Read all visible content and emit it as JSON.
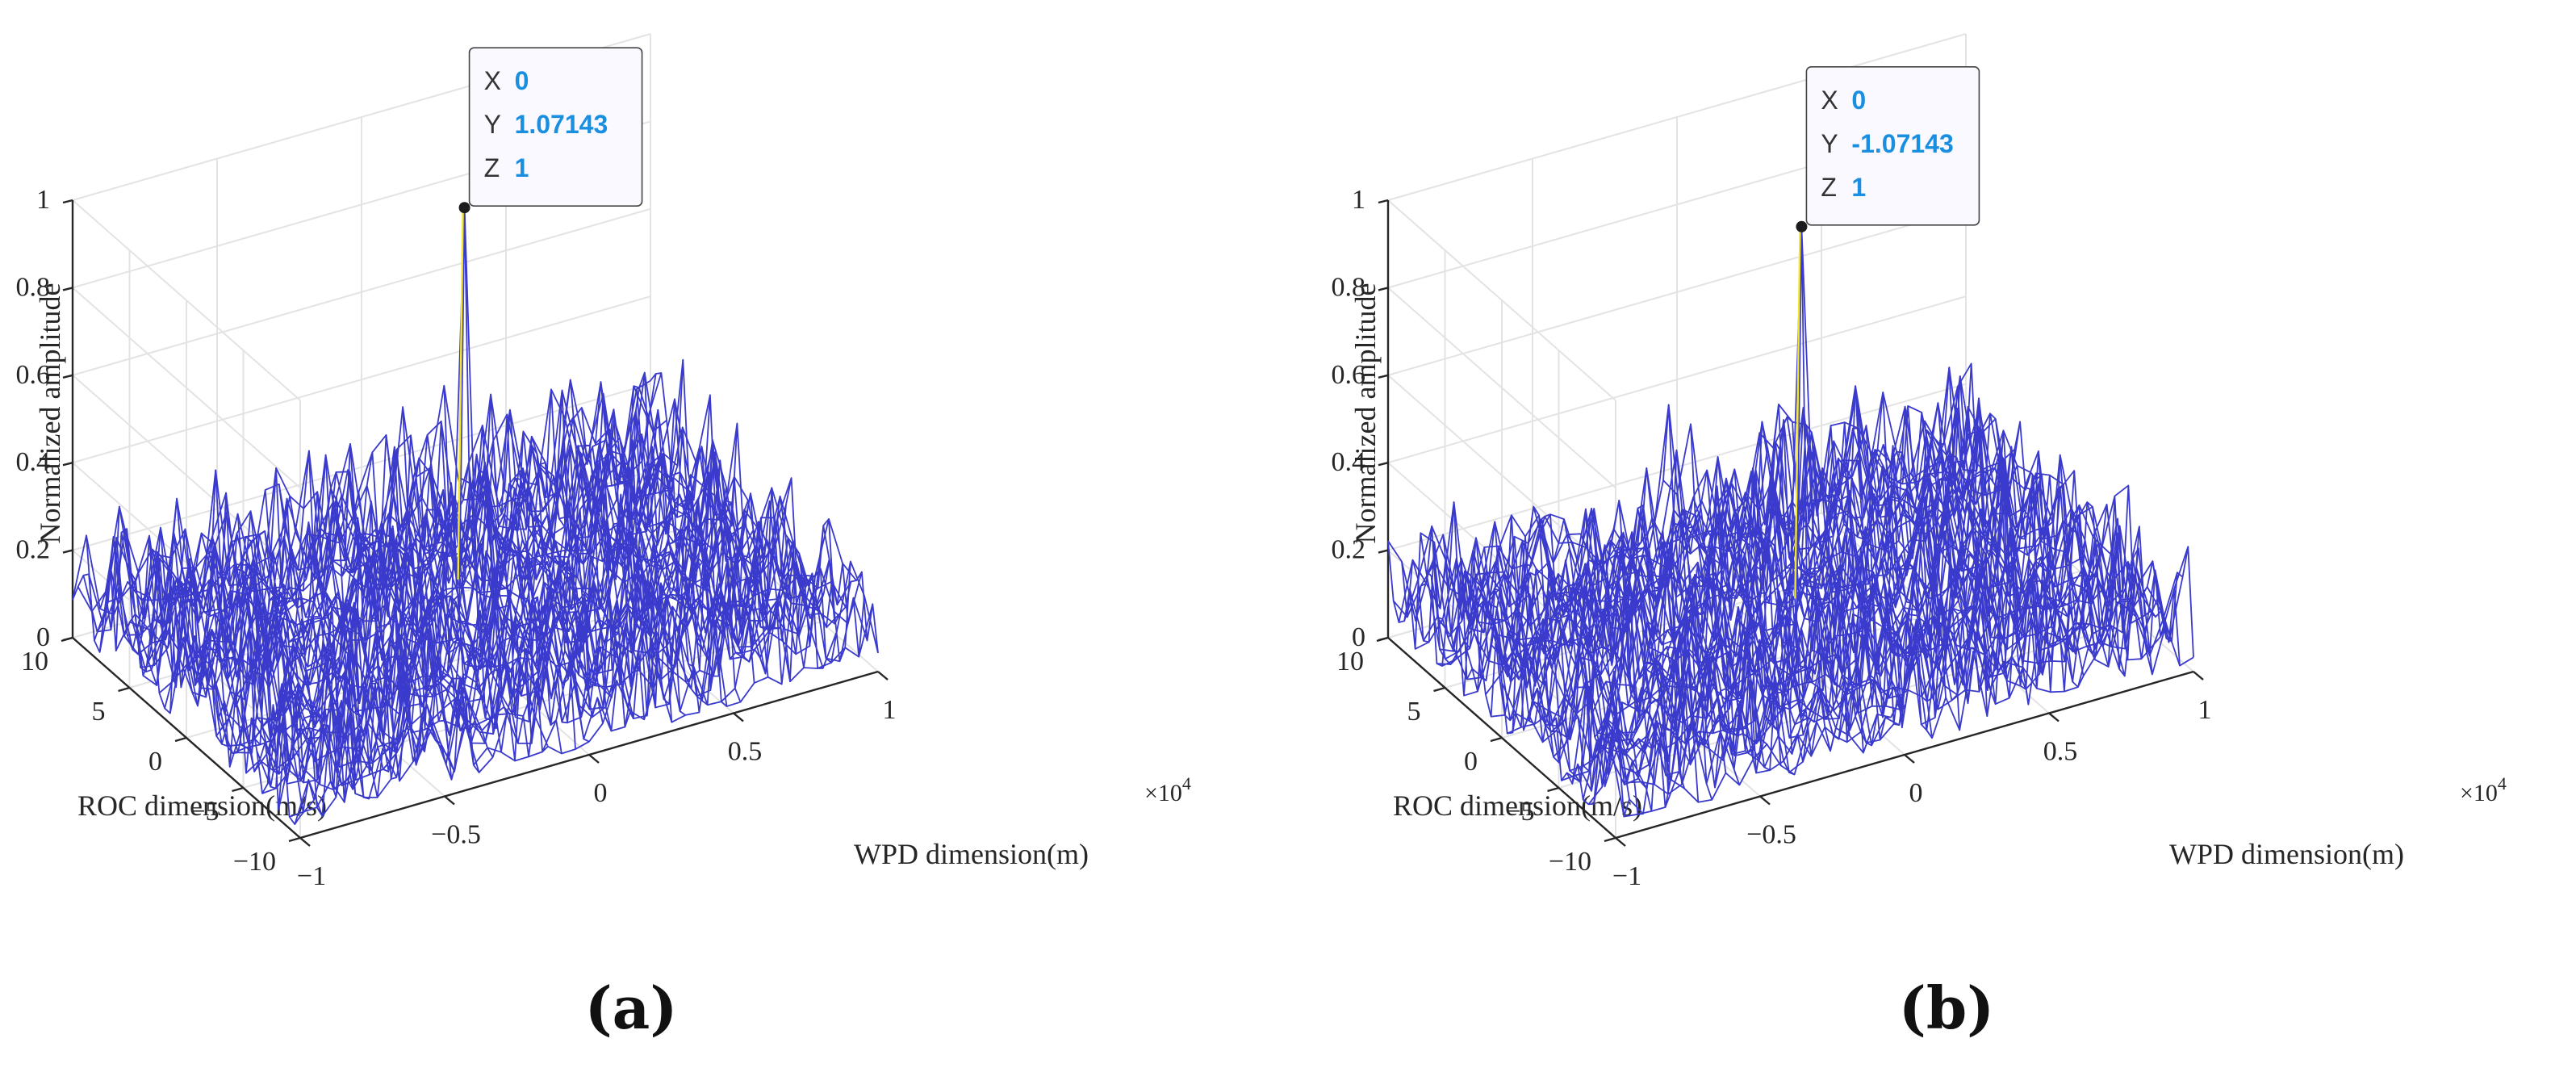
{
  "chart_data": [
    {
      "type": "mesh3d",
      "panel_label": "(a)",
      "zlabel": "Normalized amplitude",
      "xlabel": "WPD dimension(m)",
      "ylabel": "ROC dimension(m/s)",
      "x_multiplier": "×10",
      "x_multiplier_exp": "4",
      "x_ticks": [
        "−1",
        "−0.5",
        "0",
        "0.5",
        "1"
      ],
      "y_ticks": [
        "−10",
        "−5",
        "0",
        "5",
        "10"
      ],
      "z_ticks": [
        "0",
        "0.2",
        "0.4",
        "0.6",
        "0.8",
        "1"
      ],
      "xlim": [
        -1,
        1
      ],
      "ylim": [
        -10,
        10
      ],
      "zlim": [
        0,
        1
      ],
      "peak": {
        "x": 0,
        "y": 1.07143,
        "z": 1
      },
      "floor_level_max": 0.35,
      "datatip": {
        "rows": [
          {
            "key": "X",
            "value": "0"
          },
          {
            "key": "Y",
            "value": "1.07143"
          },
          {
            "key": "Z",
            "value": "1"
          }
        ]
      },
      "colors": {
        "mesh": "#3a3acc",
        "peak_line": "#f2e62a",
        "tip_value": "#1a8fe0"
      }
    },
    {
      "type": "mesh3d",
      "panel_label": "(b)",
      "zlabel": "Normalized amplitude",
      "xlabel": "WPD dimension(m)",
      "ylabel": "ROC dimension(m/s)",
      "x_multiplier": "×10",
      "x_multiplier_exp": "4",
      "x_ticks": [
        "−1",
        "−0.5",
        "0",
        "0.5",
        "1"
      ],
      "y_ticks": [
        "−10",
        "−5",
        "0",
        "5",
        "10"
      ],
      "z_ticks": [
        "0",
        "0.2",
        "0.4",
        "0.6",
        "0.8",
        "1"
      ],
      "xlim": [
        -1,
        1
      ],
      "ylim": [
        -10,
        10
      ],
      "zlim": [
        0,
        1
      ],
      "peak": {
        "x": 0,
        "y": -1.07143,
        "z": 1
      },
      "floor_level_max": 0.35,
      "datatip": {
        "rows": [
          {
            "key": "X",
            "value": "0"
          },
          {
            "key": "Y",
            "value": "-1.07143"
          },
          {
            "key": "Z",
            "value": "1"
          }
        ]
      },
      "colors": {
        "mesh": "#3a3acc",
        "peak_line": "#f2e62a",
        "tip_value": "#1a8fe0"
      }
    }
  ]
}
